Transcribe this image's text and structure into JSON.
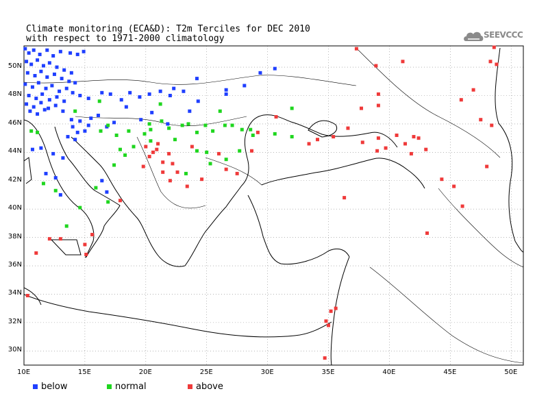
{
  "title": {
    "line1": "Climate monitoring (ECA&D): T2m Terciles for DEC 2010",
    "line2": "with respect to 1971-2000 climatology"
  },
  "logo": {
    "text": "SEEVCCC",
    "icon": "cloud-icon"
  },
  "map": {
    "lon_range": [
      10,
      51
    ],
    "lat_range": [
      29,
      51.5
    ],
    "grid": true,
    "lat_ticks": [
      {
        "value": 50,
        "label": "50N"
      },
      {
        "value": 48,
        "label": "48N"
      },
      {
        "value": 46,
        "label": "46N"
      },
      {
        "value": 44,
        "label": "44N"
      },
      {
        "value": 42,
        "label": "42N"
      },
      {
        "value": 40,
        "label": "40N"
      },
      {
        "value": 38,
        "label": "38N"
      },
      {
        "value": 36,
        "label": "36N"
      },
      {
        "value": 34,
        "label": "34N"
      },
      {
        "value": 32,
        "label": "32N"
      },
      {
        "value": 30,
        "label": "30N"
      }
    ],
    "lon_ticks": [
      {
        "value": 10,
        "label": "10E"
      },
      {
        "value": 15,
        "label": "15E"
      },
      {
        "value": 20,
        "label": "20E"
      },
      {
        "value": 25,
        "label": "25E"
      },
      {
        "value": 30,
        "label": "30E"
      },
      {
        "value": 35,
        "label": "35E"
      },
      {
        "value": 40,
        "label": "40E"
      },
      {
        "value": 45,
        "label": "45E"
      },
      {
        "value": 50,
        "label": "50E"
      }
    ]
  },
  "legend": [
    {
      "key": "below",
      "label": "below",
      "color": "#1f3fff"
    },
    {
      "key": "normal",
      "label": "normal",
      "color": "#1fd61f"
    },
    {
      "key": "above",
      "label": "above",
      "color": "#ef3a3a"
    }
  ],
  "stations": {
    "below": [
      [
        10.1,
        51.3
      ],
      [
        10.4,
        51.0
      ],
      [
        10.8,
        51.2
      ],
      [
        11.3,
        50.9
      ],
      [
        11.9,
        51.2
      ],
      [
        12.4,
        50.8
      ],
      [
        13.0,
        51.1
      ],
      [
        13.8,
        51.0
      ],
      [
        14.4,
        50.9
      ],
      [
        14.9,
        51.1
      ],
      [
        10.2,
        50.4
      ],
      [
        10.6,
        50.2
      ],
      [
        11.1,
        50.5
      ],
      [
        11.6,
        50.1
      ],
      [
        12.1,
        50.3
      ],
      [
        12.7,
        50.0
      ],
      [
        13.3,
        49.8
      ],
      [
        13.9,
        49.6
      ],
      [
        10.3,
        49.6
      ],
      [
        10.9,
        49.4
      ],
      [
        11.4,
        49.7
      ],
      [
        11.9,
        49.3
      ],
      [
        12.5,
        49.5
      ],
      [
        13.1,
        49.2
      ],
      [
        13.7,
        49.0
      ],
      [
        14.2,
        48.9
      ],
      [
        10.1,
        48.8
      ],
      [
        10.7,
        48.6
      ],
      [
        11.2,
        48.9
      ],
      [
        11.8,
        48.5
      ],
      [
        12.3,
        48.7
      ],
      [
        12.9,
        48.3
      ],
      [
        13.5,
        48.5
      ],
      [
        14.0,
        48.2
      ],
      [
        10.4,
        48.0
      ],
      [
        11.0,
        47.8
      ],
      [
        11.5,
        48.1
      ],
      [
        12.1,
        47.7
      ],
      [
        12.7,
        47.9
      ],
      [
        13.3,
        47.6
      ],
      [
        10.2,
        47.4
      ],
      [
        10.8,
        47.2
      ],
      [
        11.4,
        47.5
      ],
      [
        12.0,
        47.1
      ],
      [
        12.6,
        47.3
      ],
      [
        13.2,
        46.9
      ],
      [
        10.5,
        46.9
      ],
      [
        11.1,
        46.7
      ],
      [
        11.7,
        47.0
      ],
      [
        14.6,
        48.0
      ],
      [
        15.3,
        47.8
      ],
      [
        16.4,
        48.2
      ],
      [
        17.1,
        48.1
      ],
      [
        18.0,
        47.7
      ],
      [
        18.7,
        48.2
      ],
      [
        19.5,
        47.9
      ],
      [
        20.3,
        48.1
      ],
      [
        21.2,
        48.3
      ],
      [
        22.3,
        48.5
      ],
      [
        23.1,
        48.3
      ],
      [
        24.2,
        49.2
      ],
      [
        26.6,
        48.1
      ],
      [
        28.1,
        48.7
      ],
      [
        29.4,
        49.6
      ],
      [
        30.6,
        49.9
      ],
      [
        15.5,
        46.4
      ],
      [
        16.1,
        46.6
      ],
      [
        14.6,
        46.2
      ],
      [
        13.9,
        46.3
      ],
      [
        14.0,
        45.8
      ],
      [
        14.4,
        45.4
      ],
      [
        15.0,
        45.5
      ],
      [
        13.6,
        45.1
      ],
      [
        14.2,
        44.9
      ],
      [
        15.3,
        45.9
      ],
      [
        16.8,
        45.8
      ],
      [
        17.4,
        46.1
      ],
      [
        18.4,
        47.2
      ],
      [
        19.6,
        46.3
      ],
      [
        20.5,
        46.8
      ],
      [
        21.8,
        46.0
      ],
      [
        23.6,
        46.9
      ],
      [
        24.3,
        47.6
      ],
      [
        12.4,
        43.9
      ],
      [
        13.2,
        43.6
      ],
      [
        11.4,
        44.3
      ],
      [
        10.7,
        44.2
      ],
      [
        16.4,
        42.0
      ],
      [
        16.8,
        41.2
      ],
      [
        13.0,
        41.0
      ],
      [
        11.8,
        42.5
      ],
      [
        12.6,
        42.2
      ],
      [
        26.6,
        48.4
      ],
      [
        22.0,
        48.0
      ]
    ],
    "normal": [
      [
        11.1,
        45.4
      ],
      [
        10.6,
        45.5
      ],
      [
        11.6,
        41.8
      ],
      [
        12.6,
        41.3
      ],
      [
        13.5,
        38.8
      ],
      [
        14.6,
        40.1
      ],
      [
        16.9,
        40.5
      ],
      [
        15.9,
        41.5
      ],
      [
        16.3,
        45.5
      ],
      [
        16.9,
        45.9
      ],
      [
        17.6,
        45.2
      ],
      [
        17.9,
        44.2
      ],
      [
        18.6,
        45.5
      ],
      [
        19.0,
        44.4
      ],
      [
        19.9,
        45.3
      ],
      [
        20.4,
        45.6
      ],
      [
        20.4,
        44.8
      ],
      [
        21.3,
        46.2
      ],
      [
        21.9,
        45.7
      ],
      [
        22.4,
        44.9
      ],
      [
        23.0,
        45.9
      ],
      [
        23.5,
        46.0
      ],
      [
        24.2,
        45.4
      ],
      [
        24.9,
        45.9
      ],
      [
        25.5,
        45.5
      ],
      [
        26.1,
        46.9
      ],
      [
        26.5,
        45.9
      ],
      [
        27.1,
        45.9
      ],
      [
        27.9,
        45.6
      ],
      [
        28.6,
        45.6
      ],
      [
        24.2,
        44.1
      ],
      [
        25.0,
        44.0
      ],
      [
        26.6,
        43.5
      ],
      [
        27.7,
        44.1
      ],
      [
        25.3,
        43.2
      ],
      [
        16.2,
        47.6
      ],
      [
        32.0,
        45.1
      ],
      [
        32.0,
        47.1
      ],
      [
        17.4,
        43.1
      ],
      [
        18.3,
        43.8
      ],
      [
        14.2,
        46.9
      ],
      [
        21.2,
        47.4
      ],
      [
        23.3,
        42.5
      ],
      [
        20.3,
        46.0
      ],
      [
        30.6,
        45.3
      ],
      [
        28.8,
        45.2
      ]
    ],
    "above": [
      [
        20.0,
        44.4
      ],
      [
        20.6,
        44.0
      ],
      [
        21.0,
        44.6
      ],
      [
        21.4,
        43.3
      ],
      [
        21.9,
        43.9
      ],
      [
        22.2,
        43.2
      ],
      [
        22.6,
        42.6
      ],
      [
        22.0,
        42.0
      ],
      [
        21.4,
        42.6
      ],
      [
        23.4,
        41.6
      ],
      [
        24.6,
        42.1
      ],
      [
        26.0,
        43.9
      ],
      [
        26.6,
        42.8
      ],
      [
        27.5,
        42.5
      ],
      [
        28.7,
        44.1
      ],
      [
        29.2,
        45.4
      ],
      [
        30.7,
        46.5
      ],
      [
        33.4,
        44.6
      ],
      [
        34.1,
        44.9
      ],
      [
        35.4,
        45.1
      ],
      [
        36.6,
        45.7
      ],
      [
        37.7,
        47.1
      ],
      [
        39.1,
        47.3
      ],
      [
        41.3,
        44.6
      ],
      [
        42.0,
        45.1
      ],
      [
        42.4,
        45.0
      ],
      [
        40.6,
        45.2
      ],
      [
        39.7,
        44.3
      ],
      [
        39.0,
        44.1
      ],
      [
        37.8,
        44.7
      ],
      [
        39.1,
        45.0
      ],
      [
        41.8,
        43.9
      ],
      [
        43.0,
        44.2
      ],
      [
        44.3,
        42.1
      ],
      [
        45.3,
        41.6
      ],
      [
        46.0,
        40.2
      ],
      [
        46.9,
        48.4
      ],
      [
        47.5,
        46.3
      ],
      [
        48.0,
        43.0
      ],
      [
        48.4,
        45.9
      ],
      [
        48.6,
        51.4
      ],
      [
        48.3,
        50.4
      ],
      [
        48.8,
        50.2
      ],
      [
        45.9,
        47.7
      ],
      [
        41.1,
        50.4
      ],
      [
        37.3,
        51.3
      ],
      [
        39.1,
        48.1
      ],
      [
        43.1,
        38.3
      ],
      [
        36.3,
        40.8
      ],
      [
        38.9,
        50.1
      ],
      [
        34.8,
        32.1
      ],
      [
        35.0,
        31.8
      ],
      [
        35.2,
        32.8
      ],
      [
        35.6,
        33.0
      ],
      [
        34.7,
        29.5
      ],
      [
        10.3,
        33.9
      ],
      [
        12.1,
        37.9
      ],
      [
        13.0,
        37.9
      ],
      [
        15.1,
        36.8
      ],
      [
        15.6,
        38.2
      ],
      [
        17.9,
        40.6
      ],
      [
        15.0,
        37.5
      ],
      [
        11.0,
        36.9
      ],
      [
        23.8,
        44.4
      ],
      [
        20.9,
        44.2
      ],
      [
        20.3,
        43.7
      ],
      [
        19.8,
        43.0
      ]
    ]
  }
}
